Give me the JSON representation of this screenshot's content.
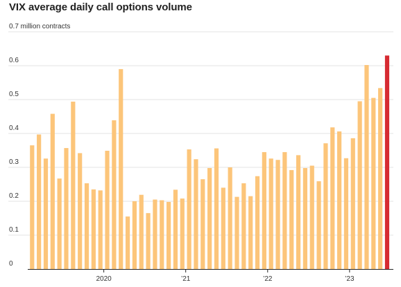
{
  "chart_data": {
    "type": "bar",
    "title": "VIX average daily call options volume",
    "unit_label": "million contracts",
    "ylim": [
      0,
      0.7
    ],
    "yticks": [
      0,
      0.1,
      0.2,
      0.3,
      0.4,
      0.5,
      0.6,
      0.7
    ],
    "ytick_labels": [
      "0",
      "0.1",
      "0.2",
      "0.3",
      "0.4",
      "0.5",
      "0.6",
      "0.7"
    ],
    "grid": true,
    "xtick_labels": [
      {
        "label": "2020",
        "index": 11
      },
      {
        "label": "’21",
        "index": 23
      },
      {
        "label": "’22",
        "index": 35
      },
      {
        "label": "’23",
        "index": 47
      }
    ],
    "colors": {
      "bar": "#fcc57a",
      "highlight": "#d62b32",
      "grid": "#e3e3e3",
      "axis": "#222222"
    },
    "highlight_index": 52,
    "values": [
      0.365,
      0.397,
      0.326,
      0.458,
      0.267,
      0.357,
      0.494,
      0.342,
      0.253,
      0.235,
      0.232,
      0.349,
      0.439,
      0.59,
      0.155,
      0.2,
      0.219,
      0.165,
      0.205,
      0.203,
      0.198,
      0.234,
      0.208,
      0.353,
      0.324,
      0.265,
      0.298,
      0.356,
      0.24,
      0.3,
      0.213,
      0.253,
      0.215,
      0.274,
      0.345,
      0.326,
      0.322,
      0.345,
      0.292,
      0.336,
      0.298,
      0.305,
      0.259,
      0.371,
      0.418,
      0.406,
      0.327,
      0.386,
      0.495,
      0.602,
      0.505,
      0.534,
      0.63
    ]
  }
}
